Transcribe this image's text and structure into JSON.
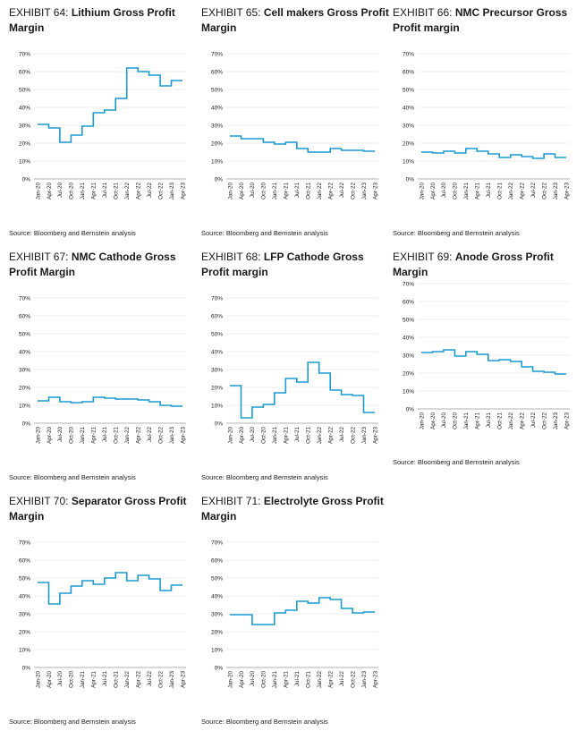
{
  "colors": {
    "line": "#1b9bd1",
    "grid": "#d9d9d9",
    "axis": "#999999",
    "text": "#1a1a1a"
  },
  "source_text": "Source: Bloomberg and Bernstein analysis",
  "chart_data": [
    {
      "type": "line",
      "exhibit": "EXHIBIT 64:",
      "title": "Lithium Gross Profit Margin",
      "categories": [
        "Jan-20",
        "Apr-20",
        "Jul-20",
        "Oct-20",
        "Jan-21",
        "Apr-21",
        "Jul-21",
        "Oct-21",
        "Jan-22",
        "Apr-22",
        "Jul-22",
        "Oct-22",
        "Jan-23",
        "Apr-23"
      ],
      "y_ticks": [
        "0%",
        "10%",
        "20%",
        "30%",
        "40%",
        "50%",
        "60%",
        "70%"
      ],
      "ylim": [
        0,
        70
      ],
      "grid": true,
      "step": true,
      "values": [
        30.5,
        28.5,
        20.5,
        24.5,
        29.5,
        37,
        38.5,
        45,
        62,
        60,
        58,
        52,
        55,
        55
      ]
    },
    {
      "type": "line",
      "exhibit": "EXHIBIT 65:",
      "title": "Cell makers Gross Profit Margin",
      "categories": [
        "Jan-20",
        "Apr-20",
        "Jul-20",
        "Oct-20",
        "Jan-21",
        "Apr-21",
        "Jul-21",
        "Oct-21",
        "Jan-22",
        "Apr-22",
        "Jul-22",
        "Oct-22",
        "Jan-23",
        "Apr-23"
      ],
      "y_ticks": [
        "0%",
        "10%",
        "20%",
        "30%",
        "40%",
        "50%",
        "60%",
        "70%"
      ],
      "ylim": [
        0,
        70
      ],
      "grid": true,
      "step": true,
      "values": [
        24,
        22.5,
        22.5,
        20.5,
        19.5,
        20.5,
        17,
        15,
        15,
        17,
        16,
        16,
        15.5,
        15.5
      ]
    },
    {
      "type": "line",
      "exhibit": "EXHIBIT 66:",
      "title": "NMC Precursor Gross Profit margin",
      "categories": [
        "Jan-20",
        "Apr-20",
        "Jul-20",
        "Oct-20",
        "Jan-21",
        "Apr-21",
        "Jul-21",
        "Oct-21",
        "Jan-22",
        "Apr-22",
        "Jul-22",
        "Oct-22",
        "Jan-23",
        "Apr-23"
      ],
      "y_ticks": [
        "0%",
        "10%",
        "20%",
        "30%",
        "40%",
        "50%",
        "60%",
        "70%"
      ],
      "ylim": [
        0,
        70
      ],
      "grid": true,
      "step": true,
      "values": [
        15,
        14.5,
        15.5,
        14.5,
        17,
        15.5,
        14,
        12,
        13.5,
        12.5,
        11.5,
        14,
        12,
        12
      ]
    },
    {
      "type": "line",
      "exhibit": "EXHIBIT 67:",
      "title": "NMC Cathode Gross Profit Margin",
      "categories": [
        "Jan-20",
        "Apr-20",
        "Jul-20",
        "Oct-20",
        "Jan-21",
        "Apr-21",
        "Jul-21",
        "Oct-21",
        "Jan-22",
        "Apr-22",
        "Jul-22",
        "Oct-22",
        "Jan-23",
        "Apr-23"
      ],
      "y_ticks": [
        "0%",
        "10%",
        "20%",
        "30%",
        "40%",
        "50%",
        "60%",
        "70%"
      ],
      "ylim": [
        0,
        70
      ],
      "grid": true,
      "step": true,
      "values": [
        12.5,
        14.5,
        12,
        11.5,
        12,
        14.5,
        14,
        13.5,
        13.5,
        13,
        12,
        10,
        9.5,
        9.5
      ]
    },
    {
      "type": "line",
      "exhibit": "EXHIBIT 68:",
      "title": "LFP Cathode Gross Profit margin",
      "categories": [
        "Jan-20",
        "Apr-20",
        "Jul-20",
        "Oct-20",
        "Jan-21",
        "Apr-21",
        "Jul-21",
        "Oct-21",
        "Jan-22",
        "Apr-22",
        "Jul-22",
        "Oct-22",
        "Jan-23",
        "Apr-23"
      ],
      "y_ticks": [
        "0%",
        "10%",
        "20%",
        "30%",
        "40%",
        "50%",
        "60%",
        "70%"
      ],
      "ylim": [
        0,
        70
      ],
      "grid": true,
      "step": true,
      "values": [
        21,
        3,
        9,
        10.5,
        17,
        25,
        23,
        34,
        28,
        18.5,
        16,
        15.5,
        6,
        6
      ]
    },
    {
      "type": "line",
      "exhibit": "EXHIBIT 69:",
      "title": "Anode Gross Profit Margin",
      "categories": [
        "Jan-20",
        "Apr-20",
        "Jul-20",
        "Oct-20",
        "Jan-21",
        "Apr-21",
        "Jul-21",
        "Oct-21",
        "Jan-22",
        "Apr-22",
        "Jul-22",
        "Oct-22",
        "Jan-23",
        "Apr-23"
      ],
      "y_ticks": [
        "0%",
        "10%",
        "20%",
        "30%",
        "40%",
        "50%",
        "60%",
        "70%"
      ],
      "ylim": [
        0,
        70
      ],
      "grid": true,
      "step": true,
      "values": [
        31.5,
        32,
        33,
        29.5,
        32,
        30.5,
        27,
        27.5,
        26.5,
        23.5,
        21,
        20.5,
        19.5,
        19.5
      ]
    },
    {
      "type": "line",
      "exhibit": "EXHIBIT 70:",
      "title": "Separator Gross Profit Margin",
      "categories": [
        "Jan-20",
        "Apr-20",
        "Jul-20",
        "Oct-20",
        "Jan-21",
        "Apr-21",
        "Jul-21",
        "Oct-21",
        "Jan-22",
        "Apr-22",
        "Jul-22",
        "Oct-22",
        "Jan-23",
        "Apr-23"
      ],
      "y_ticks": [
        "0%",
        "10%",
        "20%",
        "30%",
        "40%",
        "50%",
        "60%",
        "70%"
      ],
      "ylim": [
        0,
        70
      ],
      "grid": true,
      "step": true,
      "values": [
        47.5,
        35.5,
        41.5,
        45.5,
        48.5,
        46.5,
        50,
        53,
        48.5,
        51.5,
        49.5,
        43,
        46,
        46
      ]
    },
    {
      "type": "line",
      "exhibit": "EXHIBIT 71:",
      "title": "Electrolyte Gross Profit Margin",
      "categories": [
        "Jan-20",
        "Apr-20",
        "Jul-20",
        "Oct-20",
        "Jan-21",
        "Apr-21",
        "Jul-21",
        "Oct-21",
        "Jan-22",
        "Apr-22",
        "Jul-22",
        "Oct-22",
        "Jan-23",
        "Apr-23"
      ],
      "y_ticks": [
        "0%",
        "10%",
        "20%",
        "30%",
        "40%",
        "50%",
        "60%",
        "70%"
      ],
      "ylim": [
        0,
        70
      ],
      "grid": true,
      "step": true,
      "values": [
        29.5,
        29.5,
        24,
        24,
        30.5,
        32,
        37,
        36,
        39,
        38,
        33,
        30.5,
        31,
        31
      ]
    }
  ]
}
